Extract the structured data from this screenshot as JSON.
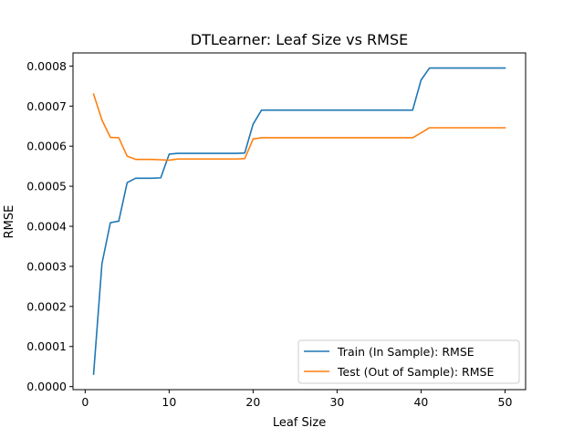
{
  "chart_data": {
    "type": "line",
    "title": "DTLearner: Leaf Size vs RMSE",
    "xlabel": "Leaf Size",
    "ylabel": "RMSE",
    "xlim": [
      -1.45,
      52.45
    ],
    "ylim": [
      -7.6e-06,
      0.0008327
    ],
    "xticks": [
      0,
      10,
      20,
      30,
      40,
      50
    ],
    "yticks": [
      0.0,
      0.0001,
      0.0002,
      0.0003,
      0.0004,
      0.0005,
      0.0006,
      0.0007,
      0.0008
    ],
    "xtick_labels": [
      "0",
      "10",
      "20",
      "30",
      "40",
      "50"
    ],
    "ytick_labels": [
      "0.0000",
      "0.0001",
      "0.0002",
      "0.0003",
      "0.0004",
      "0.0005",
      "0.0006",
      "0.0007",
      "0.0008"
    ],
    "grid": false,
    "legend_position": "lower-right",
    "x": [
      1,
      2,
      3,
      4,
      5,
      6,
      7,
      8,
      9,
      10,
      11,
      12,
      13,
      14,
      15,
      16,
      17,
      18,
      19,
      20,
      21,
      22,
      23,
      24,
      25,
      26,
      27,
      28,
      29,
      30,
      31,
      32,
      33,
      34,
      35,
      36,
      37,
      38,
      39,
      40,
      41,
      42,
      43,
      44,
      45,
      46,
      47,
      48,
      49,
      50
    ],
    "series": [
      {
        "name": "Train (In Sample): RMSE",
        "color": "#1f77b4",
        "values": [
          3.1e-05,
          0.000307,
          0.000409,
          0.000413,
          0.000509,
          0.00052,
          0.00052,
          0.00052,
          0.000521,
          0.00058,
          0.000582,
          0.000582,
          0.000582,
          0.000582,
          0.000582,
          0.000582,
          0.000582,
          0.000582,
          0.000583,
          0.000655,
          0.00069,
          0.00069,
          0.00069,
          0.00069,
          0.00069,
          0.00069,
          0.00069,
          0.00069,
          0.00069,
          0.00069,
          0.00069,
          0.00069,
          0.00069,
          0.00069,
          0.00069,
          0.00069,
          0.00069,
          0.00069,
          0.00069,
          0.000765,
          0.000795,
          0.000795,
          0.000795,
          0.000795,
          0.000795,
          0.000795,
          0.000795,
          0.000795,
          0.000795,
          0.000795
        ]
      },
      {
        "name": "Test (Out of Sample): RMSE",
        "color": "#ff7f0e",
        "values": [
          0.00073,
          0.000665,
          0.000622,
          0.000621,
          0.000575,
          0.000567,
          0.000567,
          0.000567,
          0.000566,
          0.000565,
          0.000568,
          0.000568,
          0.000568,
          0.000568,
          0.000568,
          0.000568,
          0.000568,
          0.000568,
          0.000569,
          0.000618,
          0.000621,
          0.000621,
          0.000621,
          0.000621,
          0.000621,
          0.000621,
          0.000621,
          0.000621,
          0.000621,
          0.000621,
          0.000621,
          0.000621,
          0.000621,
          0.000621,
          0.000621,
          0.000621,
          0.000621,
          0.000621,
          0.000621,
          0.000633,
          0.000646,
          0.000646,
          0.000646,
          0.000646,
          0.000646,
          0.000646,
          0.000646,
          0.000646,
          0.000646,
          0.000646
        ]
      }
    ]
  }
}
